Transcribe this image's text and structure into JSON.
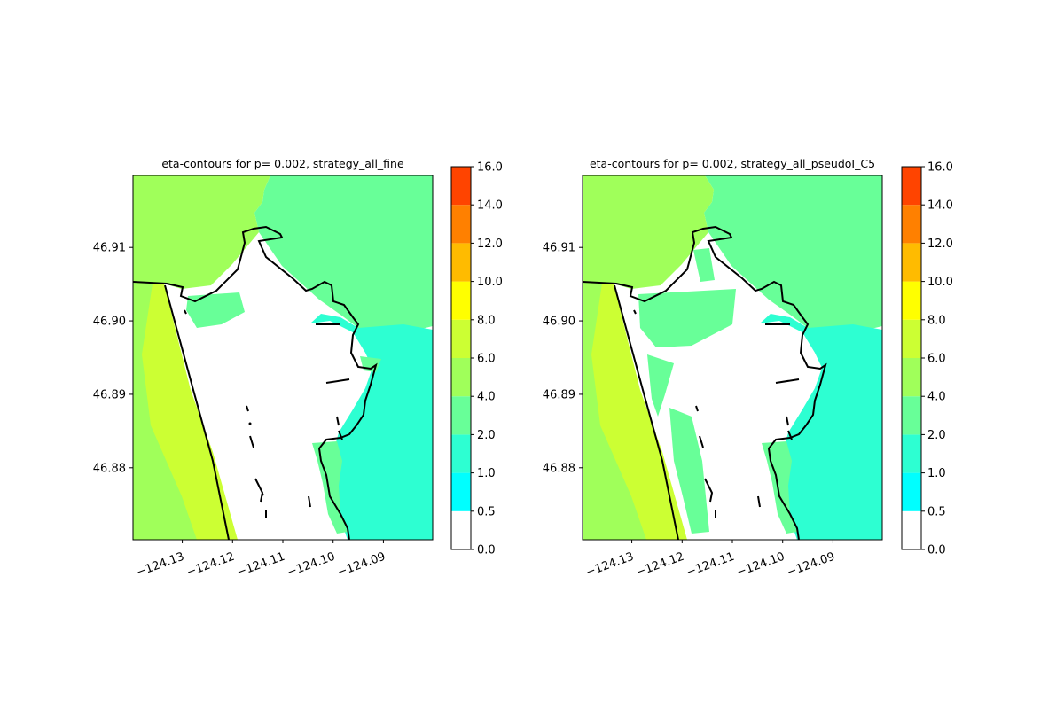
{
  "chart_data": [
    {
      "type": "heatmap",
      "subtype": "filled-contour map",
      "title": "eta-contours for p= 0.002, strategy_all_fine",
      "xlabel": "",
      "ylabel": "",
      "xlim": [
        -124.1398,
        -124.0802
      ],
      "ylim": [
        46.8702,
        46.9198
      ],
      "x_ticks": [
        -124.13,
        -124.12,
        -124.11,
        -124.1,
        -124.09
      ],
      "x_tick_labels": [
        "−124.13",
        "−124.12",
        "−124.11",
        "−124.10",
        "−124.09"
      ],
      "y_ticks": [
        46.88,
        46.89,
        46.9,
        46.91
      ],
      "y_tick_labels": [
        "46.88",
        "46.89",
        "46.90",
        "46.91"
      ],
      "grid": false,
      "regions": [
        {
          "level": "4.0-6.0",
          "area": "ocean west of shoreline"
        },
        {
          "level": "2.0-4.0",
          "area": "northern bay and offshore north-east"
        },
        {
          "level": "1.0-2.0",
          "area": "eastern channel and lower east side"
        },
        {
          "level": "0.0",
          "area": "dry land / spit interior"
        }
      ]
    },
    {
      "type": "heatmap",
      "subtype": "filled-contour map",
      "title": "eta-contours for p= 0.002, strategy_all_pseudoI_C5",
      "xlabel": "",
      "ylabel": "",
      "xlim": [
        -124.1398,
        -124.0802
      ],
      "ylim": [
        46.8702,
        46.9198
      ],
      "x_ticks": [
        -124.13,
        -124.12,
        -124.11,
        -124.1,
        -124.09
      ],
      "x_tick_labels": [
        "−124.13",
        "−124.12",
        "−124.11",
        "−124.10",
        "−124.09"
      ],
      "y_ticks": [
        46.88,
        46.89,
        46.9,
        46.91
      ],
      "y_tick_labels": [
        "46.88",
        "46.89",
        "46.90",
        "46.91"
      ],
      "grid": false,
      "regions": [
        {
          "level": "4.0-6.0",
          "area": "ocean west of shoreline"
        },
        {
          "level": "2.0-4.0",
          "area": "northern bay, scattered patches on spit"
        },
        {
          "level": "1.0-2.0",
          "area": "eastern channel and lower east side"
        },
        {
          "level": "0.0",
          "area": "dry land / spit interior"
        }
      ]
    }
  ],
  "colorbar": {
    "levels": [
      0.0,
      0.5,
      1.0,
      2.0,
      4.0,
      6.0,
      8.0,
      10.0,
      12.0,
      14.0,
      16.0
    ],
    "labels": [
      "0.0",
      "0.5",
      "1.0",
      "2.0",
      "4.0",
      "6.0",
      "8.0",
      "10.0",
      "12.0",
      "14.0",
      "16.0"
    ],
    "colors": [
      "#ffffff",
      "#00ffff",
      "#2dffd2",
      "#68ff98",
      "#a0ff5a",
      "#ccff33",
      "#ffff00",
      "#ffbb00",
      "#ff8000",
      "#ff4400",
      "#ff0000"
    ]
  }
}
